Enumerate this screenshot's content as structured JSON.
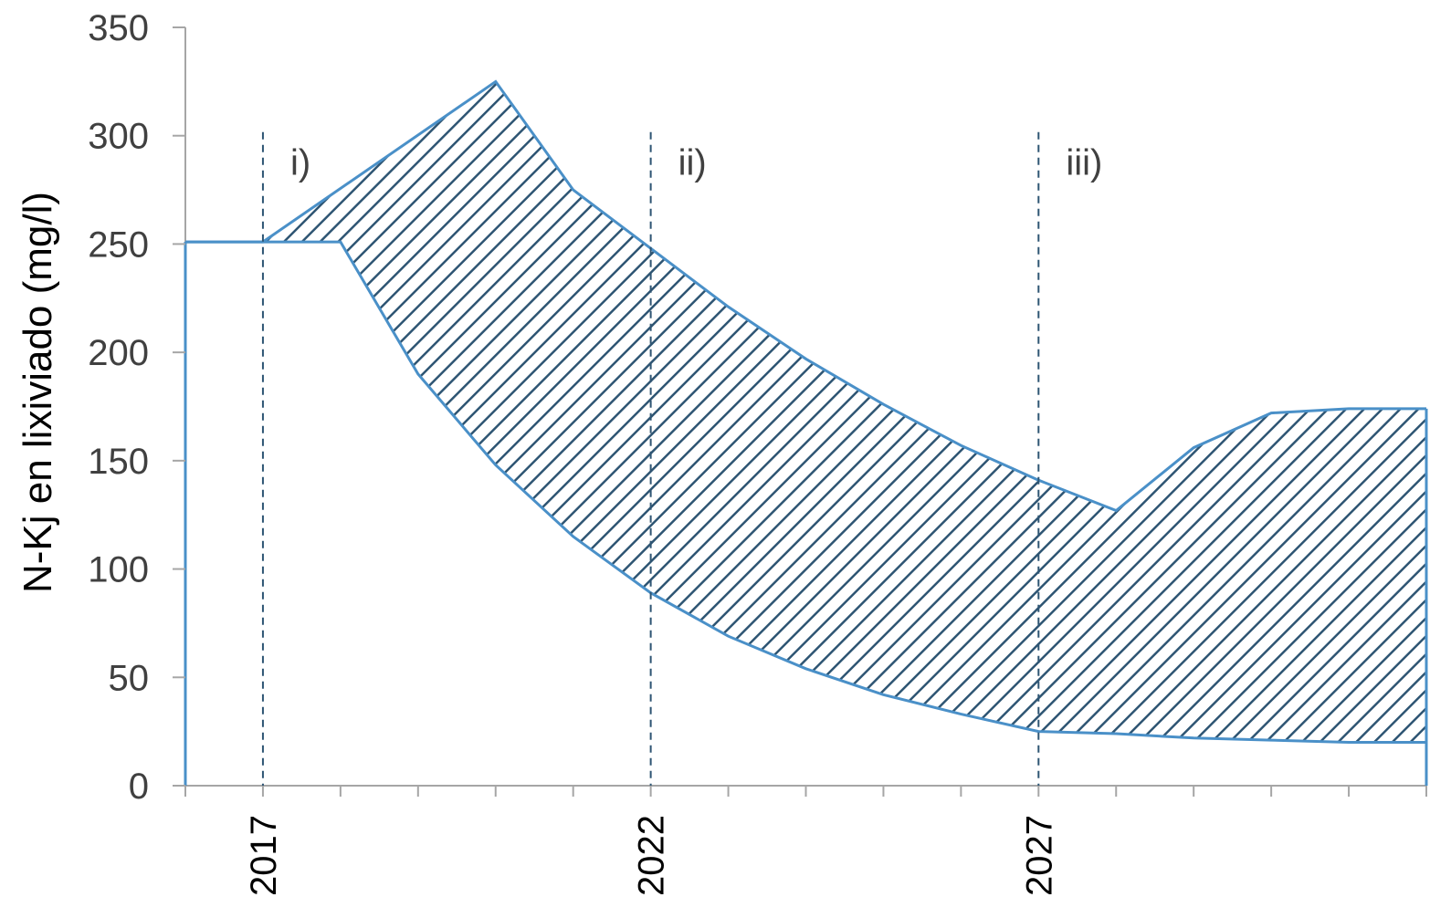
{
  "chart_data": {
    "type": "area",
    "title": "",
    "xlabel": "",
    "ylabel": "N-Kj en lixiviado (mg/l)",
    "xlim": [
      2016,
      2032
    ],
    "ylim": [
      0,
      350
    ],
    "yticks": [
      0,
      50,
      100,
      150,
      200,
      250,
      300,
      350
    ],
    "xticks_labeled": [
      2017,
      2022,
      2027
    ],
    "grid": false,
    "legend": "none",
    "hatch": "diagonal",
    "colors": {
      "outline": "#4a90c8",
      "hatch": "#2e5573",
      "axis": "#a6a6a6",
      "divider": "#2e5573"
    },
    "series": [
      {
        "role": "upper",
        "x": [
          2016,
          2017,
          2020,
          2021,
          2022,
          2023,
          2024,
          2025,
          2026,
          2027,
          2028,
          2029,
          2030,
          2031,
          2032
        ],
        "values": [
          251,
          251,
          325,
          275,
          248,
          221,
          197,
          176,
          157,
          141,
          127,
          156,
          172,
          174,
          174
        ]
      },
      {
        "role": "lower",
        "x": [
          2016,
          2017,
          2018,
          2019,
          2020,
          2021,
          2022,
          2023,
          2024,
          2025,
          2026,
          2027,
          2028,
          2029,
          2030,
          2031,
          2032
        ],
        "values": [
          251,
          251,
          251,
          190,
          148,
          115,
          89,
          69,
          54,
          42,
          33,
          25,
          24,
          22,
          21,
          20,
          20
        ]
      }
    ],
    "dividers": [
      {
        "x": 2017,
        "label": "i)"
      },
      {
        "x": 2022,
        "label": "ii)"
      },
      {
        "x": 2027,
        "label": "iii)"
      }
    ]
  }
}
